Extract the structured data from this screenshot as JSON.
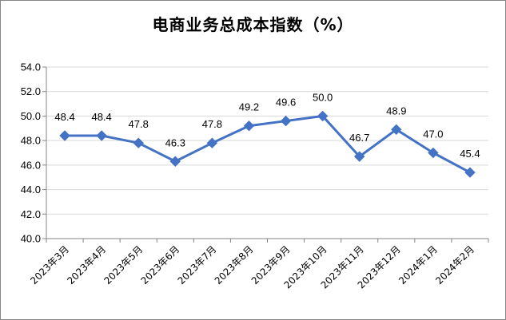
{
  "chart_data": {
    "type": "line",
    "title": "电商业务总成本指数（%）",
    "categories": [
      "2023年3月",
      "2023年4月",
      "2023年5月",
      "2023年6月",
      "2023年7月",
      "2023年8月",
      "2023年9月",
      "2023年10月",
      "2023年11月",
      "2023年12月",
      "2024年1月",
      "2024年2月"
    ],
    "values": [
      48.4,
      48.4,
      47.8,
      46.3,
      47.8,
      49.2,
      49.6,
      50.0,
      46.7,
      48.9,
      47.0,
      45.4
    ],
    "data_labels": [
      "48.4",
      "48.4",
      "47.8",
      "46.3",
      "47.8",
      "49.2",
      "49.6",
      "50.0",
      "46.7",
      "48.9",
      "47.0",
      "45.4"
    ],
    "y_ticks": [
      "40.0",
      "42.0",
      "44.0",
      "46.0",
      "48.0",
      "50.0",
      "52.0",
      "54.0"
    ],
    "ylim": [
      40,
      54
    ],
    "grid": "horizontal",
    "colors": {
      "line": "#4472C4",
      "marker": "#4472C4",
      "grid": "#D9D9D9",
      "axis": "#868686"
    }
  }
}
